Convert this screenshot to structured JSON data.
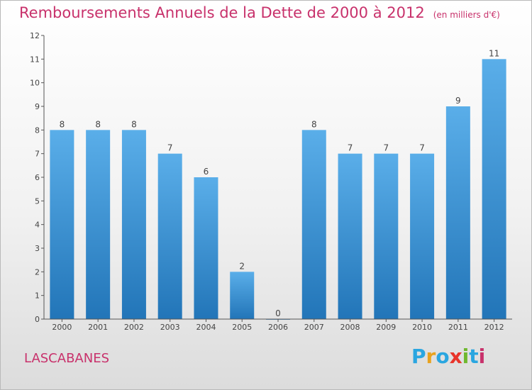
{
  "header": {
    "title": "Remboursements Annuels de la Dette de 2000 à 2012",
    "unit": "(en milliers d'€)"
  },
  "commune": "LASCABANES",
  "brand": {
    "letters": [
      "P",
      "r",
      "o",
      "x",
      "i",
      "t",
      "i"
    ],
    "colors": [
      "#2aa6e0",
      "#e8a21e",
      "#2aa6e0",
      "#e8342a",
      "#6fb82e",
      "#2aa6e0",
      "#c8316b"
    ]
  },
  "colors": {
    "bar_top": "#5aaee9",
    "bar_bottom": "#2275b8",
    "axis": "#555555",
    "title": "#c8316b"
  },
  "chart_data": {
    "type": "bar",
    "title": "Remboursements Annuels de la Dette de 2000 à 2012",
    "subtitle": "(en milliers d'€)",
    "categories": [
      "2000",
      "2001",
      "2002",
      "2003",
      "2004",
      "2005",
      "2006",
      "2007",
      "2008",
      "2009",
      "2010",
      "2011",
      "2012"
    ],
    "values": [
      8,
      8,
      8,
      7,
      6,
      2,
      0,
      8,
      7,
      7,
      7,
      9,
      11
    ],
    "ylim": [
      0,
      12
    ],
    "yticks": [
      0,
      1,
      2,
      3,
      4,
      5,
      6,
      7,
      8,
      9,
      10,
      11,
      12
    ],
    "grid": false
  }
}
